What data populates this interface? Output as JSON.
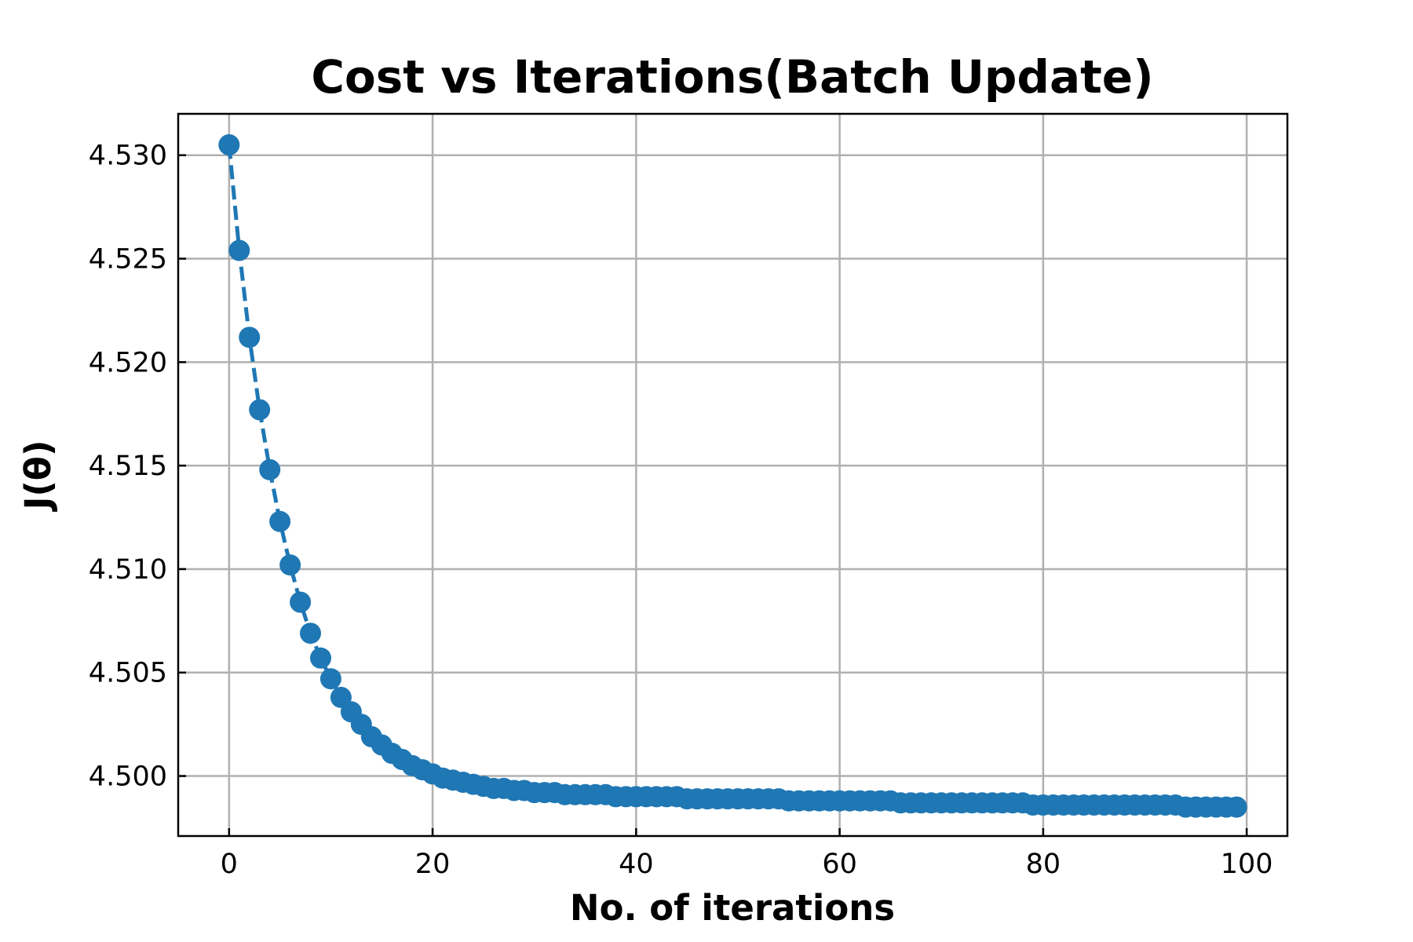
{
  "chart_data": {
    "type": "line",
    "title": "Cost vs Iterations(Batch Update)",
    "xlabel": "No. of iterations",
    "ylabel": "J(θ)",
    "xlim": [
      -5,
      104
    ],
    "ylim": [
      4.4971,
      4.532
    ],
    "xticks": [
      0,
      20,
      40,
      60,
      80,
      100
    ],
    "yticks": [
      4.5,
      4.505,
      4.51,
      4.515,
      4.52,
      4.525,
      4.53
    ],
    "ytick_labels": [
      "4.500",
      "4.505",
      "4.510",
      "4.515",
      "4.520",
      "4.525",
      "4.530"
    ],
    "grid": true,
    "line_style": "dashed",
    "marker": "circle",
    "color": "#1f77b4",
    "series": [
      {
        "x": [
          0,
          1,
          2,
          3,
          4,
          5,
          6,
          7,
          8,
          9,
          10,
          11,
          12,
          13,
          14,
          15,
          16,
          17,
          18,
          19,
          20,
          21,
          22,
          23,
          24,
          25,
          26,
          27,
          28,
          29,
          30,
          31,
          32,
          33,
          34,
          35,
          36,
          37,
          38,
          39,
          40,
          41,
          42,
          43,
          44,
          45,
          46,
          47,
          48,
          49,
          50,
          51,
          52,
          53,
          54,
          55,
          56,
          57,
          58,
          59,
          60,
          61,
          62,
          63,
          64,
          65,
          66,
          67,
          68,
          69,
          70,
          71,
          72,
          73,
          74,
          75,
          76,
          77,
          78,
          79,
          80,
          81,
          82,
          83,
          84,
          85,
          86,
          87,
          88,
          89,
          90,
          91,
          92,
          93,
          94,
          95,
          96,
          97,
          98,
          99
        ],
        "y": [
          4.5305,
          4.5254,
          4.5212,
          4.5177,
          4.5148,
          4.5123,
          4.5102,
          4.5084,
          4.5069,
          4.5057,
          4.5047,
          4.5038,
          4.5031,
          4.5025,
          4.5019,
          4.5015,
          4.5011,
          4.5008,
          4.5005,
          4.5003,
          4.5001,
          4.4999,
          4.4998,
          4.4997,
          4.4996,
          4.4995,
          4.4994,
          4.4994,
          4.4993,
          4.4993,
          4.4992,
          4.4992,
          4.4992,
          4.4991,
          4.4991,
          4.4991,
          4.4991,
          4.4991,
          4.499,
          4.499,
          4.499,
          4.499,
          4.499,
          4.499,
          4.499,
          4.4989,
          4.4989,
          4.4989,
          4.4989,
          4.4989,
          4.4989,
          4.4989,
          4.4989,
          4.4989,
          4.4989,
          4.4988,
          4.4988,
          4.4988,
          4.4988,
          4.4988,
          4.4988,
          4.4988,
          4.4988,
          4.4988,
          4.4988,
          4.4988,
          4.4987,
          4.4987,
          4.4987,
          4.4987,
          4.4987,
          4.4987,
          4.4987,
          4.4987,
          4.4987,
          4.4987,
          4.4987,
          4.4987,
          4.4987,
          4.4986,
          4.4986,
          4.4986,
          4.4986,
          4.4986,
          4.4986,
          4.4986,
          4.4986,
          4.4986,
          4.4986,
          4.4986,
          4.4986,
          4.4986,
          4.4986,
          4.4986,
          4.4985,
          4.4985,
          4.4985,
          4.4985,
          4.4985,
          4.4985
        ]
      }
    ]
  }
}
